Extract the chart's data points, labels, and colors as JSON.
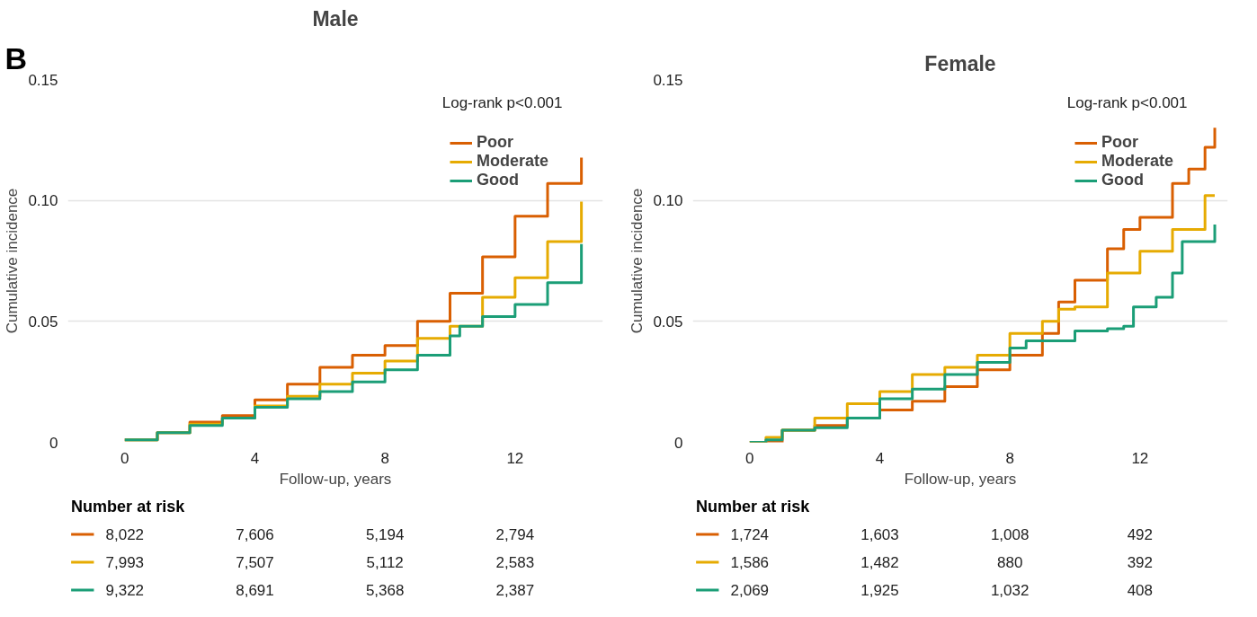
{
  "chart_data": [
    {
      "type": "step",
      "title": "Male",
      "xlabel": "Follow-up, years",
      "ylabel": "Cumulative incidence",
      "xlim": [
        -1.75,
        14.7
      ],
      "ylim": [
        0,
        0.15
      ],
      "xticks": [
        0,
        4,
        8,
        12
      ],
      "yticks": [
        0,
        {
          "value": 0.05,
          "label": "0.05"
        },
        {
          "value": 0.1,
          "label": "0.10"
        },
        {
          "value": 0.15,
          "label": "0.15"
        }
      ],
      "grid": "y",
      "legend": "top right",
      "line_style": "solid",
      "annotations": [
        "B",
        "Log-rank p<0.001",
        "Number at risk",
        "8,022",
        "7,606",
        "5,194",
        "2,794",
        "7,993",
        "7,507",
        "5,112",
        "2,583",
        "9,322",
        "8,691",
        "5,368",
        "2,387"
      ],
      "series": [
        {
          "name": "Poor",
          "color": "#d95f02",
          "x": [
            0,
            1,
            2,
            3,
            4,
            5,
            6,
            7,
            8,
            9,
            10,
            11,
            12,
            13,
            14.04
          ],
          "values": [
            0.001,
            0.004,
            0.0084,
            0.011,
            0.0175,
            0.024,
            0.031,
            0.036,
            0.04,
            0.05,
            0.0616,
            0.0767,
            0.0935,
            0.107,
            0.1177
          ]
        },
        {
          "name": "Moderate",
          "color": "#e6ab02",
          "x": [
            0,
            1,
            2,
            3,
            4,
            5,
            6,
            7,
            8,
            9,
            10,
            11,
            12,
            13,
            14.04
          ],
          "values": [
            0.001,
            0.004,
            0.0075,
            0.01,
            0.015,
            0.019,
            0.024,
            0.0286,
            0.0336,
            0.043,
            0.048,
            0.06,
            0.068,
            0.083,
            0.0995
          ]
        },
        {
          "name": "Good",
          "color": "#1b9e77",
          "x": [
            0,
            1,
            2,
            3,
            4,
            5,
            6,
            7,
            8,
            9,
            10,
            10.3,
            11,
            12,
            13,
            14.04
          ],
          "values": [
            0.001,
            0.004,
            0.007,
            0.01,
            0.0145,
            0.018,
            0.021,
            0.025,
            0.03,
            0.036,
            0.044,
            0.048,
            0.052,
            0.057,
            0.066,
            0.082
          ]
        }
      ]
    },
    {
      "type": "step",
      "title": "Female",
      "xlabel": "Follow-up, years",
      "ylabel": "Cumulative incidence",
      "xlim": [
        -1.75,
        14.7
      ],
      "ylim": [
        0,
        0.15
      ],
      "xticks": [
        0,
        4,
        8,
        12
      ],
      "yticks": [
        0,
        {
          "value": 0.05,
          "label": "0.05"
        },
        {
          "value": 0.1,
          "label": "0.10"
        },
        {
          "value": 0.15,
          "label": "0.15"
        }
      ],
      "grid": "y",
      "legend": "top right",
      "line_style": "solid",
      "annotations": [
        "Log-rank p<0.001",
        "Number at risk",
        "1,724",
        "1,603",
        "1,008",
        "492",
        "1,586",
        "1,482",
        "880",
        "392",
        "2,069",
        "1,925",
        "1,032",
        "408"
      ],
      "series": [
        {
          "name": "Poor",
          "color": "#d95f02",
          "x": [
            0,
            1,
            2,
            3,
            4,
            5,
            6,
            7,
            8,
            9,
            9.5,
            10,
            11,
            11.5,
            12,
            13,
            13.5,
            14,
            14.3
          ],
          "values": [
            0,
            0.005,
            0.007,
            0.01,
            0.0134,
            0.017,
            0.023,
            0.03,
            0.036,
            0.045,
            0.058,
            0.067,
            0.08,
            0.088,
            0.093,
            0.107,
            0.113,
            0.122,
            0.13
          ]
        },
        {
          "name": "Moderate",
          "color": "#e6ab02",
          "x": [
            0,
            0.5,
            1,
            2,
            3,
            4,
            5,
            6,
            7,
            8,
            9,
            9.5,
            10,
            11,
            12,
            13,
            14,
            14.3
          ],
          "values": [
            0,
            0.002,
            0.005,
            0.01,
            0.016,
            0.021,
            0.028,
            0.031,
            0.036,
            0.045,
            0.05,
            0.055,
            0.056,
            0.07,
            0.079,
            0.088,
            0.102,
            0.102
          ]
        },
        {
          "name": "Good",
          "color": "#1b9e77",
          "x": [
            0,
            0.5,
            1,
            2,
            3,
            4,
            5,
            6,
            7,
            8,
            8.5,
            9,
            10,
            11,
            11.5,
            11.8,
            12.5,
            13,
            13.3,
            14.2,
            14.3
          ],
          "values": [
            0,
            0.001,
            0.005,
            0.006,
            0.01,
            0.018,
            0.022,
            0.028,
            0.033,
            0.039,
            0.042,
            0.042,
            0.046,
            0.047,
            0.048,
            0.056,
            0.06,
            0.07,
            0.083,
            0.083,
            0.09
          ]
        }
      ]
    }
  ]
}
